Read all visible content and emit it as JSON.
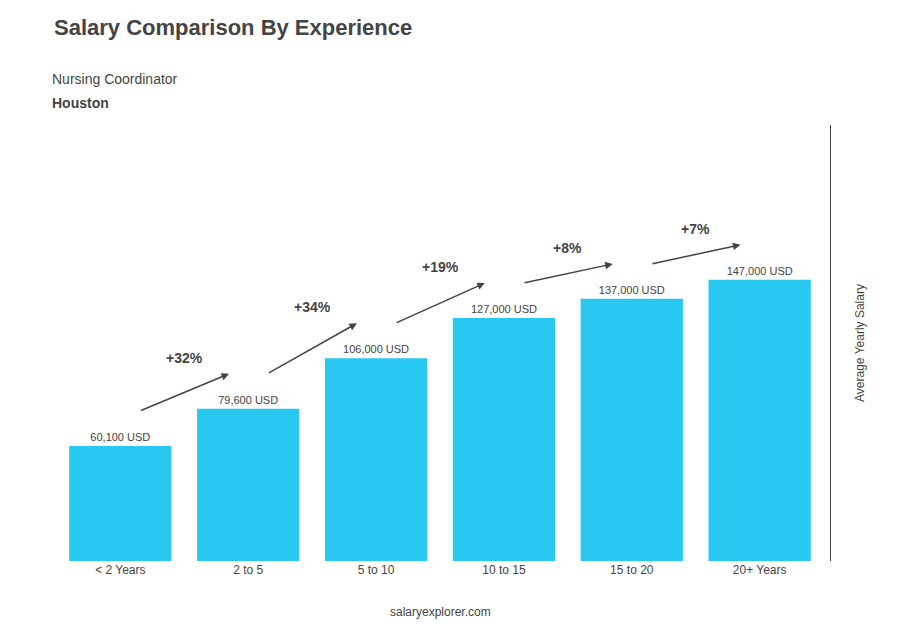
{
  "chart_data": {
    "type": "bar",
    "title": "Salary Comparison By Experience",
    "subtitle": "Nursing Coordinator",
    "y_label": "Average Yearly Salary",
    "categories": [
      "< 2 Years",
      "2 to 5",
      "5 to 10",
      "10 to 15",
      "15 to 20",
      "20+ Years"
    ],
    "values": [
      60100,
      79600,
      106000,
      127000,
      137000,
      147000
    ],
    "value_labels": [
      "60,100 USD",
      "79,600 USD",
      "106,000 USD",
      "127,000 USD",
      "137,000 USD",
      "147,000 USD"
    ],
    "data_labels": true,
    "color": "#29c8f0",
    "ylim": [
      0,
      227850
    ],
    "tick_labels": "x",
    "grid": false,
    "annotations": {
      "location": "Houston",
      "changes": [
        "+32%",
        "+34%",
        "+19%",
        "+8%",
        "+7%"
      ],
      "watermark": "salaryexplorer.com"
    }
  }
}
